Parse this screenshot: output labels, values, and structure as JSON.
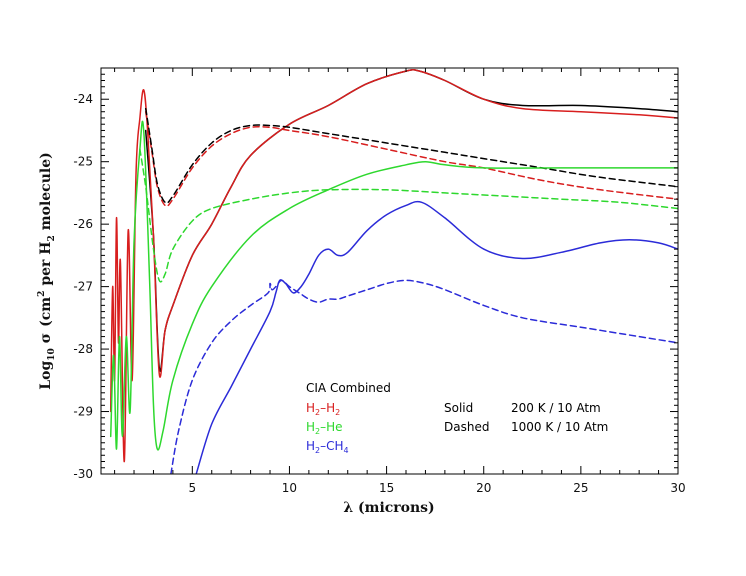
{
  "chart_data": {
    "type": "line",
    "title": "",
    "xlabel": "λ (microns)",
    "ylabel_parts": {
      "prefix": "Log",
      "prefix_sub": "10",
      "sigma": "σ",
      "unit_open": "(cm",
      "unit_sup": "2",
      "unit_mid": "per H",
      "unit_sub": "2",
      "unit_end": "molecule)"
    },
    "xlim": [
      0.3,
      30
    ],
    "ylim": [
      -30,
      -23.5
    ],
    "xticks": [
      5,
      10,
      15,
      20,
      25,
      30
    ],
    "yticks": [
      -30,
      -29,
      -28,
      -27,
      -26,
      -25,
      -24
    ],
    "xtick_labels": [
      "5",
      "10",
      "15",
      "20",
      "25",
      "30"
    ],
    "ytick_labels": [
      "-30",
      "-29",
      "-28",
      "-27",
      "-26",
      "-25",
      "-24"
    ],
    "grid": false,
    "colors": {
      "combined": "#000000",
      "h2h2": "#d81e1e",
      "h2he": "#2ed82e",
      "h2ch4": "#2b2bd8"
    },
    "legend": {
      "header": "CIA Combined",
      "entries": [
        {
          "id": "h2h2",
          "base": "H",
          "sub1": "2",
          "mid": "–H",
          "sub2": "2",
          "color": "#d81e1e"
        },
        {
          "id": "h2he",
          "base": "H",
          "sub1": "2",
          "mid": "–He",
          "sub2": "",
          "color": "#2ed82e"
        },
        {
          "id": "h2ch4",
          "base": "H",
          "sub1": "2",
          "mid": "–CH",
          "sub2": "4",
          "color": "#2b2bd8"
        }
      ],
      "styles": [
        {
          "style": "Solid",
          "desc": "200 K / 10 Atm"
        },
        {
          "style": "Dashed",
          "desc": "1000 K / 10 Atm"
        }
      ]
    },
    "series": [
      {
        "name": "Combined 200 K",
        "color": "#000000",
        "dash": false,
        "x": [
          2.6,
          3.0,
          3.3,
          3.6,
          4.0,
          5.0,
          6.0,
          7.0,
          8.0,
          10.0,
          12.0,
          14.0,
          16.0,
          16.7,
          18.0,
          20.0,
          22.0,
          25.0,
          28.0,
          30.0
        ],
        "y": [
          -24.5,
          -26.2,
          -28.3,
          -27.7,
          -27.3,
          -26.5,
          -26.0,
          -25.4,
          -24.9,
          -24.4,
          -24.1,
          -23.75,
          -23.55,
          -23.55,
          -23.7,
          -24.0,
          -24.1,
          -24.1,
          -24.15,
          -24.2
        ]
      },
      {
        "name": "H2-H2 200 K",
        "color": "#d81e1e",
        "dash": false,
        "x": [
          0.8,
          0.9,
          1.0,
          1.1,
          1.2,
          1.3,
          1.5,
          1.7,
          1.9,
          2.1,
          2.3,
          2.5,
          2.7,
          3.0,
          3.3,
          3.6,
          4.0,
          5.0,
          6.0,
          7.0,
          8.0,
          10.0,
          12.0,
          14.0,
          16.0,
          16.7,
          18.0,
          20.0,
          22.0,
          25.0,
          28.0,
          30.0
        ],
        "y": [
          -29.0,
          -27.0,
          -28.5,
          -25.9,
          -27.9,
          -26.6,
          -29.8,
          -26.1,
          -28.5,
          -25.2,
          -24.3,
          -23.85,
          -24.5,
          -26.2,
          -28.4,
          -27.7,
          -27.3,
          -26.5,
          -26.0,
          -25.4,
          -24.9,
          -24.4,
          -24.1,
          -23.75,
          -23.55,
          -23.55,
          -23.7,
          -24.0,
          -24.15,
          -24.2,
          -24.25,
          -24.3
        ]
      },
      {
        "name": "H2-H2 1000 K",
        "color": "#d81e1e",
        "dash": true,
        "x": [
          2.6,
          2.9,
          3.2,
          3.6,
          4.0,
          5.0,
          6.0,
          7.0,
          8.0,
          9.0,
          10.0,
          12.0,
          15.0,
          18.0,
          20.0,
          23.0,
          26.0,
          30.0
        ],
        "y": [
          -24.2,
          -24.8,
          -25.4,
          -25.7,
          -25.6,
          -25.1,
          -24.75,
          -24.55,
          -24.45,
          -24.45,
          -24.5,
          -24.6,
          -24.8,
          -25.0,
          -25.1,
          -25.3,
          -25.45,
          -25.6
        ]
      },
      {
        "name": "Combined 1000 K",
        "color": "#000000",
        "dash": true,
        "x": [
          2.6,
          2.9,
          3.2,
          3.6,
          4.0,
          5.0,
          6.0,
          7.0,
          8.0,
          9.0,
          10.0,
          12.0,
          15.0,
          18.0,
          20.0,
          23.0,
          26.0,
          30.0
        ],
        "y": [
          -24.15,
          -24.75,
          -25.35,
          -25.65,
          -25.55,
          -25.05,
          -24.7,
          -24.5,
          -24.42,
          -24.42,
          -24.45,
          -24.55,
          -24.7,
          -24.85,
          -24.95,
          -25.1,
          -25.25,
          -25.4
        ]
      },
      {
        "name": "H2-He 200 K",
        "color": "#2ed82e",
        "dash": false,
        "x": [
          0.8,
          0.95,
          1.1,
          1.25,
          1.4,
          1.6,
          1.8,
          2.0,
          2.3,
          2.5,
          2.8,
          3.0,
          3.2,
          3.5,
          4.0,
          5.0,
          6.0,
          8.0,
          10.0,
          12.0,
          14.0,
          16.0,
          17.0,
          18.0,
          20.0,
          24.0,
          28.0,
          30.0
        ],
        "y": [
          -29.4,
          -28.1,
          -29.6,
          -27.8,
          -29.4,
          -27.8,
          -29.0,
          -26.3,
          -24.8,
          -24.5,
          -26.9,
          -28.9,
          -29.6,
          -29.3,
          -28.5,
          -27.6,
          -27.0,
          -26.2,
          -25.75,
          -25.45,
          -25.2,
          -25.05,
          -25.0,
          -25.05,
          -25.1,
          -25.1,
          -25.1,
          -25.1
        ]
      },
      {
        "name": "H2-He 1000 K",
        "color": "#2ed82e",
        "dash": true,
        "x": [
          2.3,
          2.6,
          3.0,
          3.3,
          3.6,
          4.0,
          5.0,
          6.0,
          8.0,
          10.0,
          12.0,
          15.0,
          18.0,
          21.0,
          24.0,
          27.0,
          30.0
        ],
        "y": [
          -24.8,
          -25.4,
          -26.4,
          -26.9,
          -26.8,
          -26.4,
          -25.95,
          -25.75,
          -25.6,
          -25.5,
          -25.45,
          -25.45,
          -25.5,
          -25.55,
          -25.6,
          -25.65,
          -25.75
        ]
      },
      {
        "name": "H2-CH4 200 K",
        "color": "#2b2bd8",
        "dash": false,
        "x": [
          5.2,
          6.0,
          7.0,
          8.0,
          9.0,
          9.3,
          9.5,
          9.8,
          10.2,
          10.6,
          11.0,
          11.5,
          12.0,
          12.5,
          13.0,
          14.0,
          15.0,
          16.0,
          16.8,
          18.0,
          20.0,
          22.0,
          24.0,
          26.0,
          27.5,
          29.0,
          30.0
        ],
        "y": [
          -30.0,
          -29.2,
          -28.6,
          -28.0,
          -27.4,
          -27.1,
          -26.9,
          -26.95,
          -27.1,
          -27.0,
          -26.8,
          -26.5,
          -26.4,
          -26.5,
          -26.45,
          -26.1,
          -25.85,
          -25.7,
          -25.65,
          -25.9,
          -26.4,
          -26.55,
          -26.45,
          -26.3,
          -26.25,
          -26.3,
          -26.4
        ]
      },
      {
        "name": "H2-CH4 1000 K",
        "color": "#2b2bd8",
        "dash": true,
        "x": [
          3.9,
          4.3,
          5.0,
          6.0,
          7.0,
          8.0,
          8.9,
          9.0,
          9.1,
          9.3,
          9.6,
          10.0,
          10.5,
          11.0,
          11.5,
          12.0,
          12.5,
          13.0,
          14.0,
          15.0,
          16.0,
          17.0,
          18.0,
          20.0,
          22.0,
          25.0,
          28.0,
          30.0
        ],
        "y": [
          -30.0,
          -29.3,
          -28.5,
          -27.9,
          -27.55,
          -27.3,
          -27.1,
          -26.95,
          -27.05,
          -27.0,
          -26.9,
          -27.0,
          -27.1,
          -27.2,
          -27.25,
          -27.2,
          -27.2,
          -27.15,
          -27.05,
          -26.95,
          -26.9,
          -26.95,
          -27.05,
          -27.3,
          -27.5,
          -27.65,
          -27.8,
          -27.9
        ]
      }
    ]
  }
}
